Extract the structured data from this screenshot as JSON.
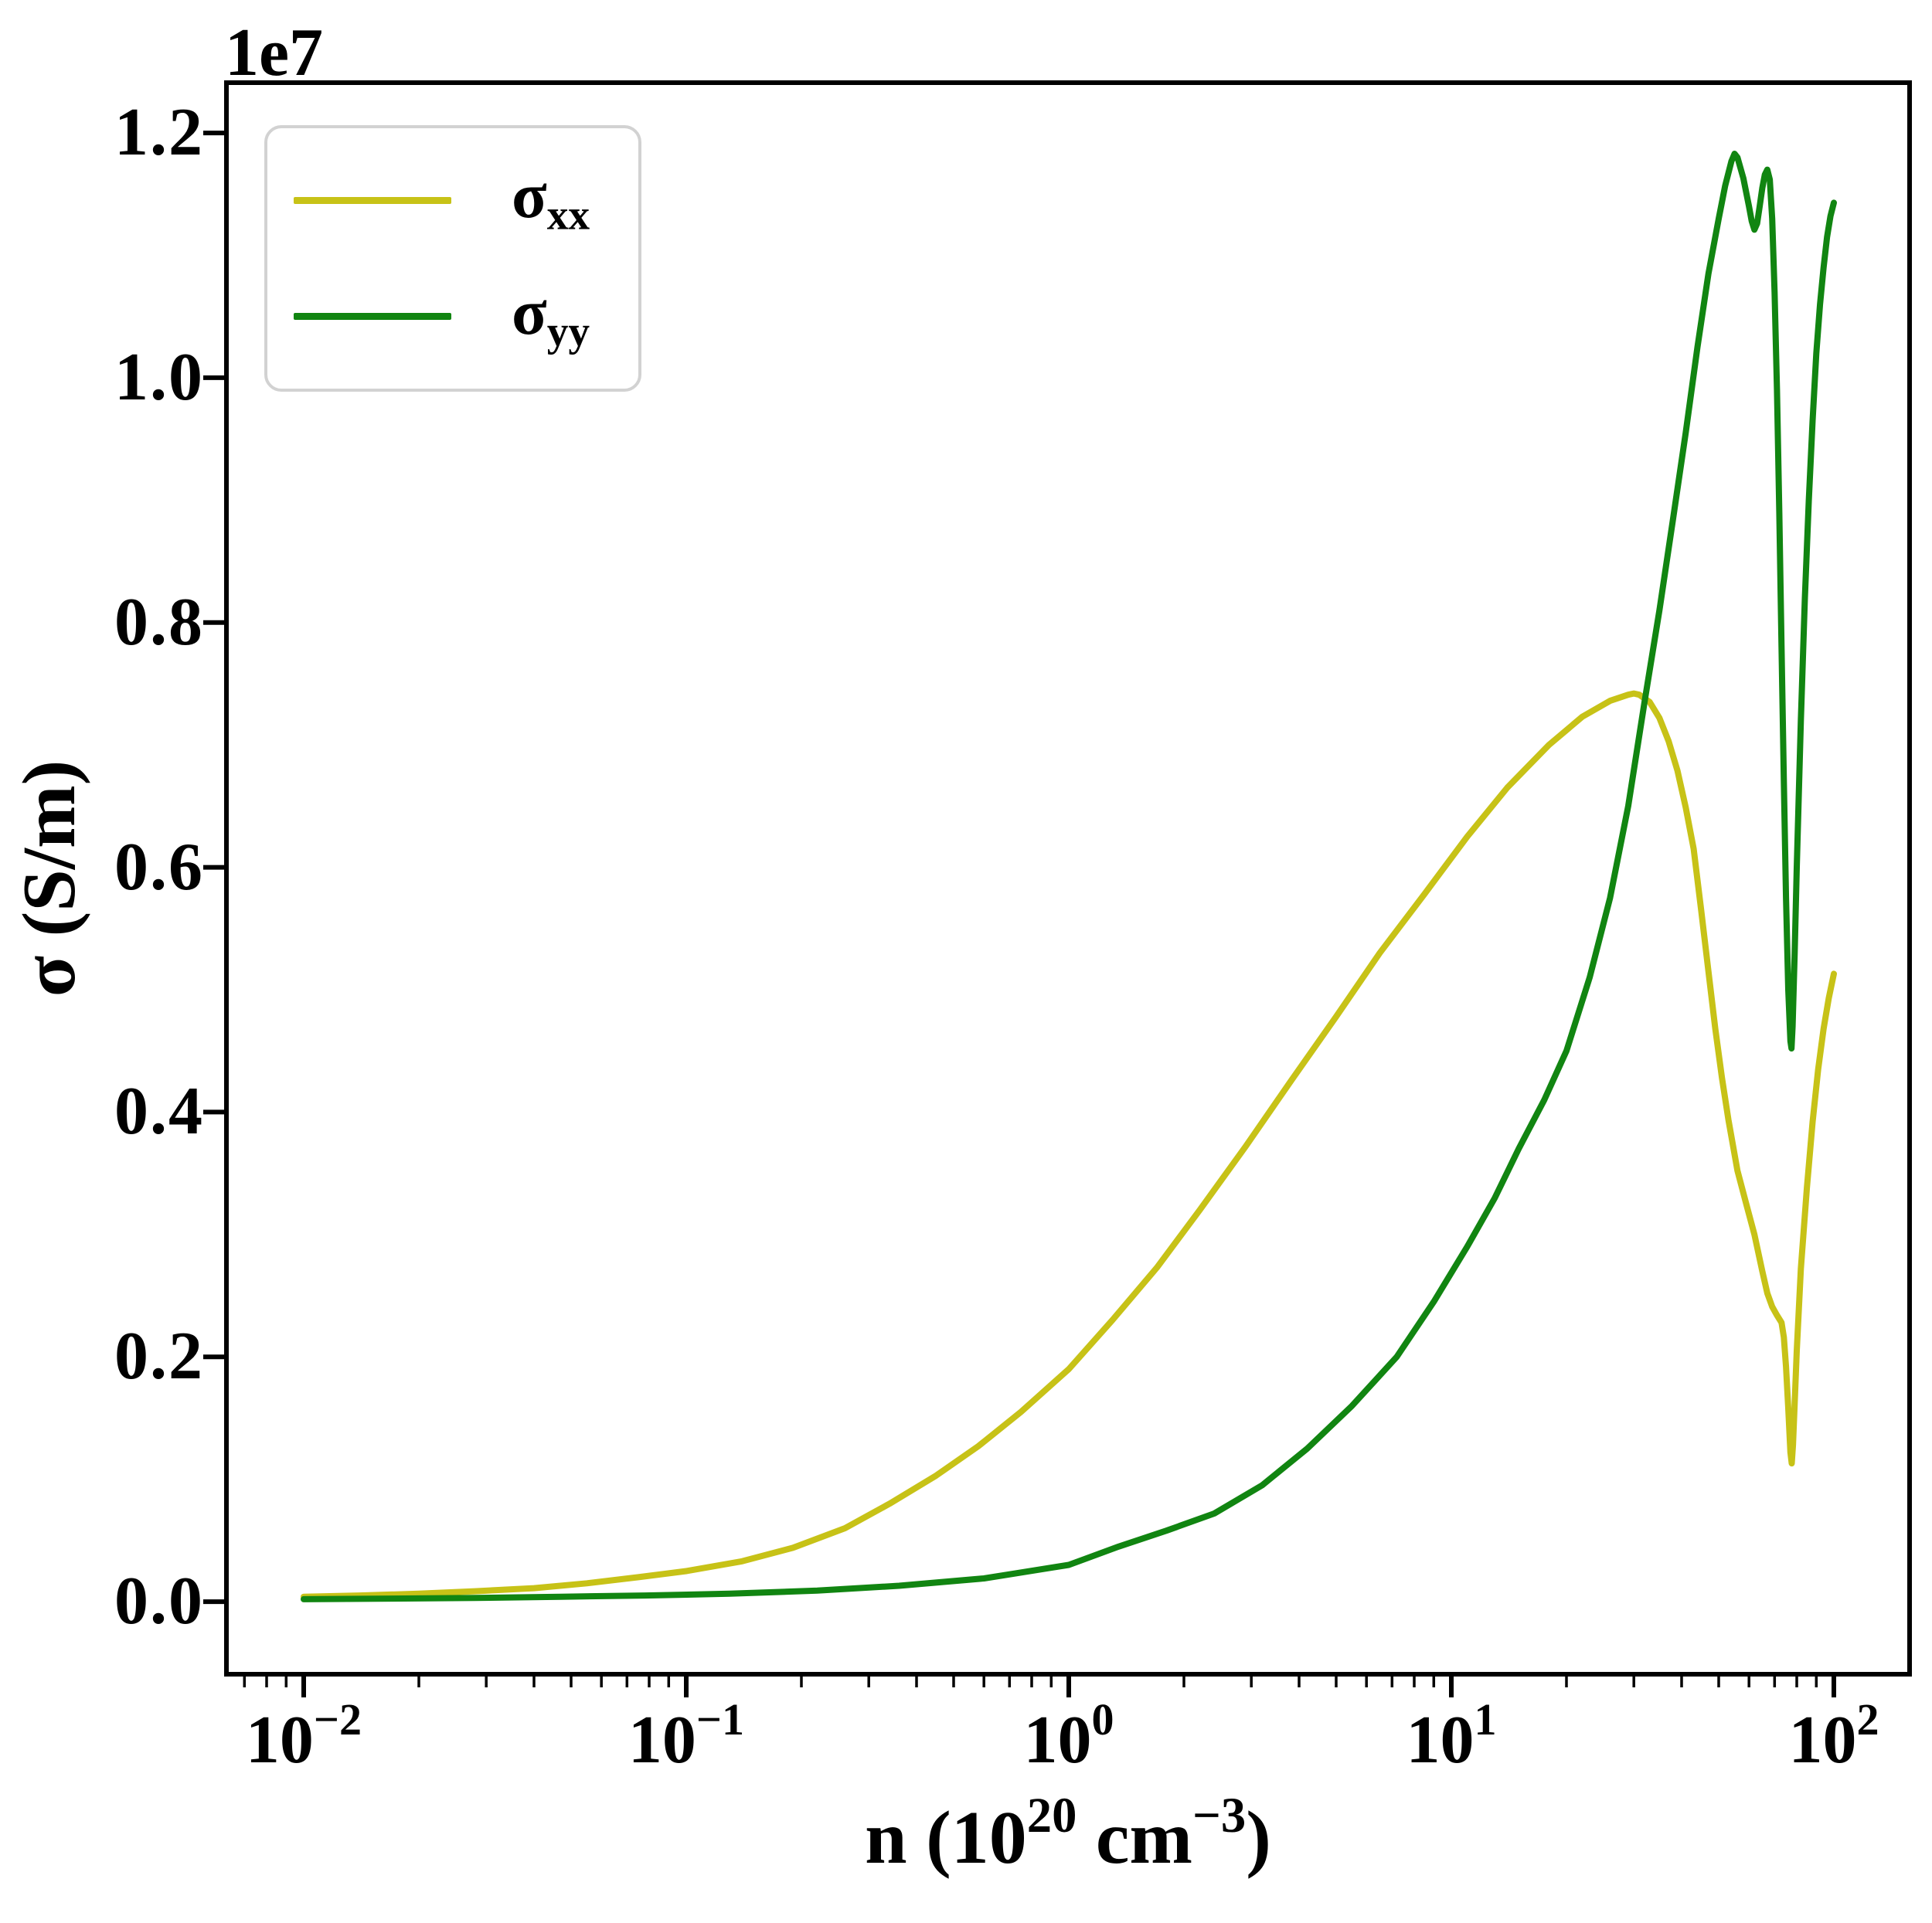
{
  "figure": {
    "background": "#ffffff",
    "axes_color": "#000000",
    "offset_text": "1e7"
  },
  "legend": {
    "border_color": "#d2d2d2",
    "entries": [
      {
        "base": "σ",
        "sub": "xx",
        "color": "#c7c217"
      },
      {
        "base": "σ",
        "sub": "yy",
        "color": "#118511"
      }
    ]
  },
  "chart_data": {
    "type": "line",
    "title": "",
    "ylabel": "σ (S/m)",
    "xlabel_plain": "n (10^20 cm^-3)",
    "xlabel": {
      "pre": "n (10",
      "sup1": "20",
      "mid": " cm",
      "sup2": "−3",
      "post": ")"
    },
    "x_scale": "log",
    "grid": false,
    "legend_position": "upper left",
    "y_offset_multiplier": "1e7",
    "x_units": "10^20 cm^-3",
    "sigma_units": "1e7 S/m",
    "xlim_log": [
      -2.202,
      2.198
    ],
    "ylim": [
      -0.0593,
      1.2411
    ],
    "y_ticks": [
      {
        "v": 0.0,
        "label": "0.0"
      },
      {
        "v": 0.2,
        "label": "0.2"
      },
      {
        "v": 0.4,
        "label": "0.4"
      },
      {
        "v": 0.6,
        "label": "0.6"
      },
      {
        "v": 0.8,
        "label": "0.8"
      },
      {
        "v": 1.0,
        "label": "1.0"
      },
      {
        "v": 1.2,
        "label": "1.2"
      }
    ],
    "x_major_ticks": [
      {
        "log": -2,
        "base": "10",
        "exp": "−2"
      },
      {
        "log": -1,
        "base": "10",
        "exp": "−1"
      },
      {
        "log": 0,
        "base": "10",
        "exp": "0"
      },
      {
        "log": 1,
        "base": "10",
        "exp": "1"
      },
      {
        "log": 2,
        "base": "10",
        "exp": "2"
      }
    ],
    "series": [
      {
        "name": "σxx",
        "color": "#c7c217",
        "points": [
          [
            0.01,
            0.004
          ],
          [
            0.014,
            0.005
          ],
          [
            0.02,
            0.0065
          ],
          [
            0.028,
            0.0085
          ],
          [
            0.04,
            0.011
          ],
          [
            0.055,
            0.015
          ],
          [
            0.075,
            0.02
          ],
          [
            0.1,
            0.025
          ],
          [
            0.14,
            0.033
          ],
          [
            0.19,
            0.044
          ],
          [
            0.26,
            0.06
          ],
          [
            0.34,
            0.08
          ],
          [
            0.45,
            0.103
          ],
          [
            0.58,
            0.127
          ],
          [
            0.75,
            0.155
          ],
          [
            1.0,
            0.19
          ],
          [
            1.3,
            0.23
          ],
          [
            1.7,
            0.273
          ],
          [
            2.2,
            0.32
          ],
          [
            2.9,
            0.372
          ],
          [
            3.8,
            0.425
          ],
          [
            5.0,
            0.478
          ],
          [
            6.5,
            0.53
          ],
          [
            8.5,
            0.578
          ],
          [
            11,
            0.625
          ],
          [
            14,
            0.665
          ],
          [
            18,
            0.7
          ],
          [
            22,
            0.723
          ],
          [
            26,
            0.736
          ],
          [
            29,
            0.741
          ],
          [
            30,
            0.742
          ],
          [
            31,
            0.741
          ],
          [
            33,
            0.735
          ],
          [
            35,
            0.722
          ],
          [
            37,
            0.703
          ],
          [
            39,
            0.679
          ],
          [
            41,
            0.649
          ],
          [
            43,
            0.615
          ],
          [
            45,
            0.565
          ],
          [
            47,
            0.515
          ],
          [
            49,
            0.468
          ],
          [
            51,
            0.428
          ],
          [
            53,
            0.394
          ],
          [
            56,
            0.352
          ],
          [
            59,
            0.325
          ],
          [
            62,
            0.3
          ],
          [
            65,
            0.27
          ],
          [
            67,
            0.252
          ],
          [
            69,
            0.241
          ],
          [
            71,
            0.234
          ],
          [
            73,
            0.228
          ],
          [
            74,
            0.216
          ],
          [
            75,
            0.192
          ],
          [
            76,
            0.158
          ],
          [
            77,
            0.122
          ],
          [
            77.6,
            0.113
          ],
          [
            78.2,
            0.128
          ],
          [
            79,
            0.162
          ],
          [
            80,
            0.205
          ],
          [
            82,
            0.272
          ],
          [
            85,
            0.338
          ],
          [
            88,
            0.392
          ],
          [
            91,
            0.435
          ],
          [
            94,
            0.468
          ],
          [
            97,
            0.493
          ],
          [
            100,
            0.513
          ]
        ]
      },
      {
        "name": "σyy",
        "color": "#118511",
        "points": [
          [
            0.01,
            0.002
          ],
          [
            0.017,
            0.0025
          ],
          [
            0.028,
            0.003
          ],
          [
            0.047,
            0.004
          ],
          [
            0.078,
            0.005
          ],
          [
            0.13,
            0.0065
          ],
          [
            0.22,
            0.009
          ],
          [
            0.36,
            0.013
          ],
          [
            0.6,
            0.019
          ],
          [
            1.0,
            0.03
          ],
          [
            1.35,
            0.045
          ],
          [
            1.8,
            0.058
          ],
          [
            2.4,
            0.072
          ],
          [
            3.2,
            0.095
          ],
          [
            4.2,
            0.125
          ],
          [
            5.5,
            0.16
          ],
          [
            7.2,
            0.2
          ],
          [
            9.0,
            0.245
          ],
          [
            11,
            0.29
          ],
          [
            13,
            0.33
          ],
          [
            15,
            0.37
          ],
          [
            17.5,
            0.41
          ],
          [
            20,
            0.45
          ],
          [
            23,
            0.51
          ],
          [
            26,
            0.575
          ],
          [
            29,
            0.65
          ],
          [
            32,
            0.735
          ],
          [
            35,
            0.81
          ],
          [
            38,
            0.885
          ],
          [
            41,
            0.955
          ],
          [
            44,
            1.025
          ],
          [
            47,
            1.085
          ],
          [
            50,
            1.13
          ],
          [
            52,
            1.157
          ],
          [
            54,
            1.177
          ],
          [
            55,
            1.183
          ],
          [
            56,
            1.18
          ],
          [
            58,
            1.163
          ],
          [
            60,
            1.14
          ],
          [
            61,
            1.128
          ],
          [
            62,
            1.121
          ],
          [
            63,
            1.126
          ],
          [
            64,
            1.14
          ],
          [
            65,
            1.155
          ],
          [
            66,
            1.166
          ],
          [
            67,
            1.17
          ],
          [
            68,
            1.162
          ],
          [
            69,
            1.13
          ],
          [
            70,
            1.07
          ],
          [
            71,
            0.99
          ],
          [
            72,
            0.89
          ],
          [
            73,
            0.78
          ],
          [
            74,
            0.67
          ],
          [
            75,
            0.575
          ],
          [
            76,
            0.5
          ],
          [
            77,
            0.458
          ],
          [
            77.5,
            0.452
          ],
          [
            78,
            0.47
          ],
          [
            79,
            0.53
          ],
          [
            80,
            0.6
          ],
          [
            82,
            0.72
          ],
          [
            84,
            0.82
          ],
          [
            86,
            0.9
          ],
          [
            88,
            0.965
          ],
          [
            90,
            1.02
          ],
          [
            92,
            1.06
          ],
          [
            94,
            1.09
          ],
          [
            96,
            1.115
          ],
          [
            98,
            1.132
          ],
          [
            100,
            1.143
          ]
        ]
      }
    ]
  }
}
